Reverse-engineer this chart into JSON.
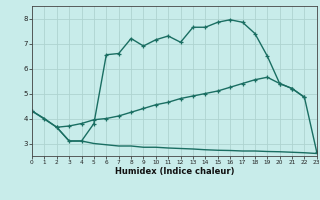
{
  "xlabel": "Humidex (Indice chaleur)",
  "bg_color": "#c8ecea",
  "grid_color": "#aed4d0",
  "line_color": "#1a6e62",
  "xlim": [
    0,
    23
  ],
  "ylim": [
    2.5,
    8.5
  ],
  "curve1_x": [
    0,
    1,
    2,
    3,
    4,
    5,
    6,
    7,
    8,
    9,
    10,
    11,
    12,
    13,
    14,
    15,
    16,
    17,
    18,
    19,
    20,
    21,
    22
  ],
  "curve1_y": [
    4.3,
    4.0,
    3.65,
    3.1,
    3.1,
    3.8,
    6.55,
    6.6,
    7.2,
    6.9,
    7.15,
    7.3,
    7.05,
    7.65,
    7.65,
    7.85,
    7.95,
    7.85,
    7.4,
    6.5,
    5.4,
    5.2,
    4.85
  ],
  "curve2_x": [
    0,
    2,
    3,
    4,
    5,
    6,
    7,
    8,
    9,
    10,
    11,
    12,
    13,
    14,
    15,
    16,
    17,
    18,
    19,
    20,
    21,
    22,
    23
  ],
  "curve2_y": [
    4.3,
    3.65,
    3.7,
    3.8,
    3.95,
    4.0,
    4.1,
    4.25,
    4.4,
    4.55,
    4.65,
    4.8,
    4.9,
    5.0,
    5.1,
    5.25,
    5.4,
    5.55,
    5.65,
    5.4,
    5.2,
    4.85,
    2.65
  ],
  "curve3_x": [
    2,
    3,
    4,
    5,
    6,
    7,
    8,
    9,
    10,
    11,
    12,
    13,
    14,
    15,
    16,
    17,
    18,
    19,
    20,
    21,
    22,
    23
  ],
  "curve3_y": [
    3.65,
    3.1,
    3.1,
    3.0,
    2.95,
    2.9,
    2.9,
    2.85,
    2.85,
    2.82,
    2.8,
    2.78,
    2.75,
    2.73,
    2.72,
    2.7,
    2.7,
    2.68,
    2.67,
    2.65,
    2.63,
    2.6
  ],
  "marker": "+",
  "marker_size": 3.5,
  "linewidth": 1.0
}
